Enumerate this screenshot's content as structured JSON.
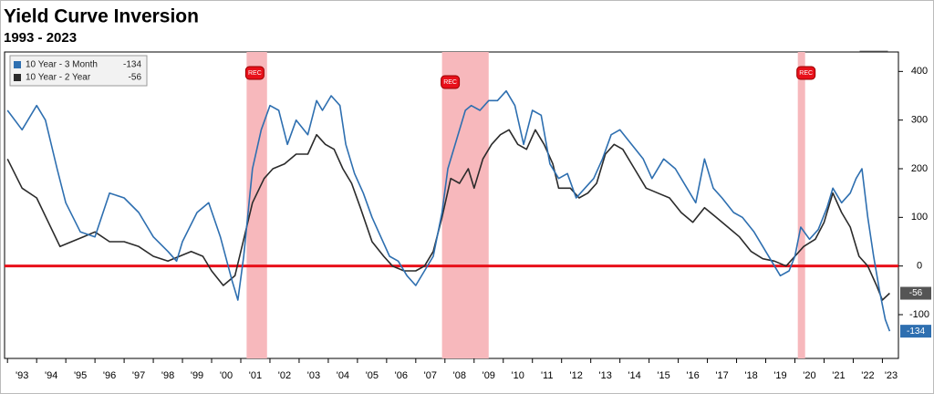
{
  "chart_data": {
    "type": "line",
    "title": "Yield Curve Inversion",
    "subtitle": "1993 - 2023",
    "xlim": [
      1992.9,
      2023.55
    ],
    "ylim": [
      -190,
      440
    ],
    "yticks": [
      -100,
      0,
      100,
      200,
      300,
      400
    ],
    "xticks": [
      {
        "value": 1993,
        "label": "'93"
      },
      {
        "value": 1994,
        "label": "'94"
      },
      {
        "value": 1995,
        "label": "'95"
      },
      {
        "value": 1996,
        "label": "'96"
      },
      {
        "value": 1997,
        "label": "'97"
      },
      {
        "value": 1998,
        "label": "'98"
      },
      {
        "value": 1999,
        "label": "'99"
      },
      {
        "value": 2000,
        "label": "'00"
      },
      {
        "value": 2001,
        "label": "'01"
      },
      {
        "value": 2002,
        "label": "'02"
      },
      {
        "value": 2003,
        "label": "'03"
      },
      {
        "value": 2004,
        "label": "'04"
      },
      {
        "value": 2005,
        "label": "'05"
      },
      {
        "value": 2006,
        "label": "'06"
      },
      {
        "value": 2007,
        "label": "'07"
      },
      {
        "value": 2008,
        "label": "'08"
      },
      {
        "value": 2009,
        "label": "'09"
      },
      {
        "value": 2010,
        "label": "'10"
      },
      {
        "value": 2011,
        "label": "'11"
      },
      {
        "value": 2012,
        "label": "'12"
      },
      {
        "value": 2013,
        "label": "'13"
      },
      {
        "value": 2014,
        "label": "'14"
      },
      {
        "value": 2015,
        "label": "'15"
      },
      {
        "value": 2016,
        "label": "'16"
      },
      {
        "value": 2017,
        "label": "'17"
      },
      {
        "value": 2018,
        "label": "'18"
      },
      {
        "value": 2019,
        "label": "'19"
      },
      {
        "value": 2020,
        "label": "'20"
      },
      {
        "value": 2021,
        "label": "'21"
      },
      {
        "value": 2022,
        "label": "'22"
      },
      {
        "value": 2023,
        "label": "'23"
      }
    ],
    "grid": false,
    "reference_line": {
      "value": 0,
      "color": "#e8101a"
    },
    "recession_color": "#f7b8bc",
    "recession_label": "REC",
    "recessions": [
      {
        "start": 2001.2,
        "end": 2001.9
      },
      {
        "start": 2007.9,
        "end": 2009.5
      },
      {
        "start": 2020.1,
        "end": 2020.35
      }
    ],
    "legend": "top-left",
    "series": [
      {
        "name": "10 Year - 3 Month",
        "color": "#2e6fb0",
        "x": [
          1993.0,
          1993.5,
          1994.0,
          1994.3,
          1994.7,
          1995.0,
          1995.5,
          1996.0,
          1996.5,
          1997.0,
          1997.5,
          1998.0,
          1998.5,
          1998.8,
          1999.0,
          1999.5,
          1999.9,
          2000.3,
          2000.7,
          2000.9,
          2001.1,
          2001.4,
          2001.7,
          2002.0,
          2002.3,
          2002.6,
          2002.9,
          2003.3,
          2003.6,
          2003.8,
          2004.1,
          2004.4,
          2004.6,
          2004.9,
          2005.2,
          2005.5,
          2005.8,
          2006.1,
          2006.4,
          2006.7,
          2007.0,
          2007.3,
          2007.6,
          2007.9,
          2008.1,
          2008.4,
          2008.7,
          2008.9,
          2009.2,
          2009.5,
          2009.8,
          2010.1,
          2010.4,
          2010.7,
          2011.0,
          2011.3,
          2011.6,
          2011.9,
          2012.2,
          2012.5,
          2012.8,
          2013.1,
          2013.4,
          2013.7,
          2014.0,
          2014.4,
          2014.8,
          2015.1,
          2015.5,
          2015.9,
          2016.3,
          2016.6,
          2016.9,
          2017.2,
          2017.5,
          2017.9,
          2018.2,
          2018.6,
          2018.9,
          2019.2,
          2019.5,
          2019.8,
          2020.0,
          2020.2,
          2020.5,
          2020.8,
          2021.1,
          2021.3,
          2021.6,
          2021.9,
          2022.1,
          2022.3,
          2022.5,
          2022.7,
          2022.9,
          2023.1,
          2023.25
        ],
        "values": [
          320,
          280,
          330,
          300,
          200,
          130,
          70,
          60,
          150,
          140,
          110,
          60,
          30,
          10,
          50,
          110,
          130,
          60,
          -30,
          -70,
          20,
          200,
          280,
          330,
          320,
          250,
          300,
          270,
          340,
          320,
          350,
          330,
          250,
          190,
          150,
          100,
          60,
          20,
          10,
          -20,
          -40,
          -10,
          20,
          110,
          200,
          260,
          320,
          330,
          320,
          340,
          340,
          360,
          330,
          250,
          320,
          310,
          210,
          180,
          190,
          140,
          160,
          180,
          220,
          270,
          280,
          250,
          220,
          180,
          220,
          200,
          160,
          130,
          220,
          160,
          140,
          110,
          100,
          70,
          40,
          10,
          -20,
          -10,
          20,
          80,
          55,
          75,
          120,
          160,
          130,
          150,
          180,
          200,
          100,
          20,
          -50,
          -110,
          -134
        ]
      },
      {
        "name": "10 Year - 2 Year",
        "color": "#2b2b2b",
        "x": [
          1993.0,
          1993.5,
          1994.0,
          1994.4,
          1994.8,
          1995.2,
          1995.6,
          1996.0,
          1996.5,
          1997.0,
          1997.5,
          1998.0,
          1998.5,
          1998.9,
          1999.3,
          1999.7,
          2000.0,
          2000.4,
          2000.8,
          2001.0,
          2001.4,
          2001.8,
          2002.1,
          2002.5,
          2002.9,
          2003.3,
          2003.6,
          2003.9,
          2004.2,
          2004.5,
          2004.8,
          2005.1,
          2005.5,
          2005.9,
          2006.2,
          2006.6,
          2007.0,
          2007.3,
          2007.6,
          2007.9,
          2008.2,
          2008.5,
          2008.8,
          2009.0,
          2009.3,
          2009.6,
          2009.9,
          2010.2,
          2010.5,
          2010.8,
          2011.1,
          2011.4,
          2011.7,
          2011.9,
          2012.3,
          2012.6,
          2012.9,
          2013.2,
          2013.5,
          2013.8,
          2014.1,
          2014.5,
          2014.9,
          2015.3,
          2015.7,
          2016.1,
          2016.5,
          2016.9,
          2017.3,
          2017.7,
          2018.1,
          2018.5,
          2018.9,
          2019.3,
          2019.7,
          2020.0,
          2020.3,
          2020.7,
          2021.0,
          2021.3,
          2021.6,
          2021.9,
          2022.2,
          2022.5,
          2022.8,
          2023.0,
          2023.25
        ],
        "values": [
          220,
          160,
          140,
          90,
          40,
          50,
          60,
          70,
          50,
          50,
          40,
          20,
          10,
          20,
          30,
          20,
          -10,
          -40,
          -20,
          30,
          130,
          180,
          200,
          210,
          230,
          230,
          270,
          250,
          240,
          200,
          170,
          120,
          50,
          20,
          0,
          -10,
          -10,
          0,
          30,
          100,
          180,
          170,
          200,
          160,
          220,
          250,
          270,
          280,
          250,
          240,
          280,
          250,
          210,
          160,
          160,
          140,
          150,
          170,
          230,
          250,
          240,
          200,
          160,
          150,
          140,
          110,
          90,
          120,
          100,
          80,
          60,
          30,
          15,
          10,
          0,
          20,
          40,
          55,
          90,
          150,
          110,
          80,
          20,
          0,
          -40,
          -70,
          -56
        ]
      }
    ]
  }
}
